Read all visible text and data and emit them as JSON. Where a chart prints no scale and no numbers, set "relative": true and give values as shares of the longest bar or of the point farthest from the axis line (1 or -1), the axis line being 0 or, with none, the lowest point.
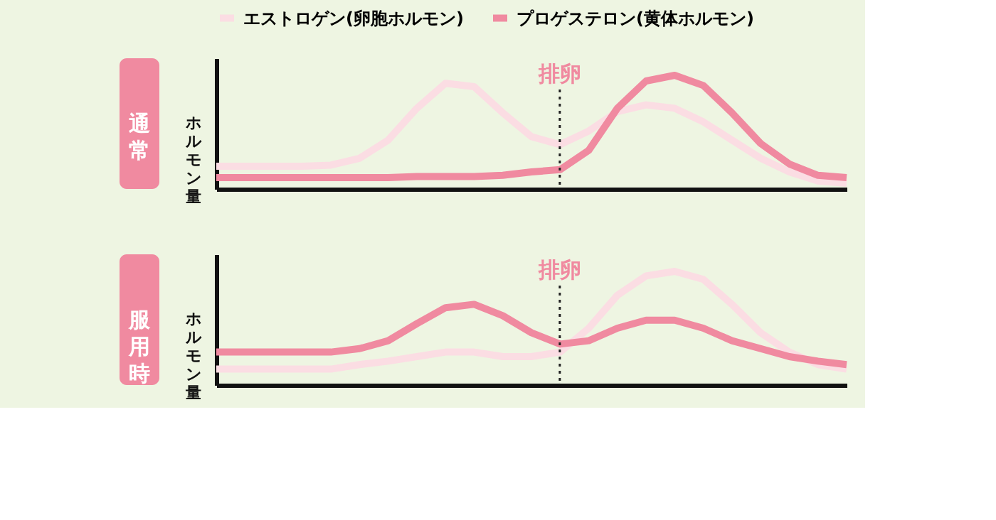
{
  "chart_data": [
    {
      "type": "line",
      "title": "通常",
      "ylabel": "ホルモン量",
      "relative": true,
      "legend": "top",
      "grid": false,
      "tick_labels": false,
      "marker": "none",
      "line_style": "solid",
      "categories": [
        null,
        null,
        null,
        null,
        null,
        null,
        null,
        null,
        null,
        null,
        null,
        null,
        null,
        null,
        null,
        null,
        null,
        null,
        null,
        null,
        null,
        null,
        null
      ],
      "series": [
        {
          "name": "エストロゲン(卵胞ホルモン)",
          "color": "#fbdde3",
          "values": [
            0.2,
            0.2,
            0.2,
            0.2,
            0.21,
            0.27,
            0.43,
            0.71,
            0.93,
            0.9,
            0.67,
            0.46,
            0.39,
            0.51,
            0.68,
            0.74,
            0.71,
            0.59,
            0.43,
            0.27,
            0.15,
            0.07,
            0.05
          ]
        },
        {
          "name": "プロゲステロン(黄体ホルモン)",
          "color": "#f08aa0",
          "values": [
            0.1,
            0.1,
            0.1,
            0.1,
            0.1,
            0.1,
            0.1,
            0.11,
            0.11,
            0.11,
            0.12,
            0.15,
            0.17,
            0.34,
            0.71,
            0.95,
            1,
            0.91,
            0.67,
            0.4,
            0.22,
            0.12,
            0.1
          ]
        }
      ],
      "annotations": [
        "排卵"
      ]
    },
    {
      "type": "line",
      "title": "服用時",
      "ylabel": "ホルモン量",
      "relative": true,
      "legend": false,
      "grid": false,
      "tick_labels": false,
      "marker": "none",
      "line_style": "solid",
      "categories": [
        null,
        null,
        null,
        null,
        null,
        null,
        null,
        null,
        null,
        null,
        null,
        null,
        null,
        null,
        null,
        null,
        null,
        null,
        null,
        null,
        null,
        null,
        null
      ],
      "series": [
        {
          "color": "#fbdde3",
          "values": [
            0.14,
            0.14,
            0.14,
            0.14,
            0.14,
            0.18,
            0.21,
            0.25,
            0.29,
            0.29,
            0.25,
            0.25,
            0.29,
            0.5,
            0.79,
            0.96,
            1,
            0.93,
            0.71,
            0.46,
            0.29,
            0.18,
            0.14
          ]
        },
        {
          "color": "#f08aa0",
          "values": [
            0.29,
            0.29,
            0.29,
            0.29,
            0.29,
            0.32,
            0.39,
            0.54,
            0.68,
            0.71,
            0.61,
            0.46,
            0.36,
            0.39,
            0.5,
            0.57,
            0.57,
            0.5,
            0.39,
            0.32,
            0.25,
            0.21,
            0.18
          ]
        }
      ],
      "annotations": [
        "排卵"
      ]
    }
  ]
}
